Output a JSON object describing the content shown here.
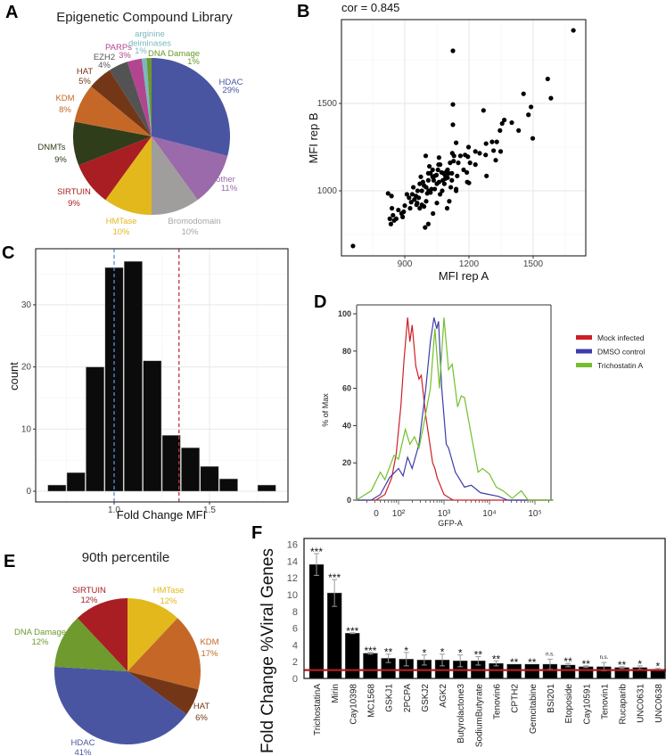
{
  "panels": {
    "a": "A",
    "b": "B",
    "c": "C",
    "d": "D",
    "e": "E",
    "f": "F"
  },
  "chart_data": [
    {
      "id": "A",
      "type": "pie",
      "title": "Epigenetic Compound Library",
      "slices": [
        {
          "label": "HDAC",
          "pct_label": "29%",
          "value": 29,
          "color": "#4a55a2"
        },
        {
          "label": "other",
          "pct_label": "11%",
          "value": 11,
          "color": "#9a6aaa"
        },
        {
          "label": "Bromodomain",
          "pct_label": "10%",
          "value": 10,
          "color": "#a09e9c"
        },
        {
          "label": "HMTase",
          "pct_label": "10%",
          "value": 10,
          "color": "#e2b81c"
        },
        {
          "label": "SIRTUIN",
          "pct_label": "9%",
          "value": 9,
          "color": "#a91e22"
        },
        {
          "label": "DNMTs",
          "pct_label": "9%",
          "value": 9,
          "color": "#2f3d1a"
        },
        {
          "label": "KDM",
          "pct_label": "8%",
          "value": 8,
          "color": "#c56827"
        },
        {
          "label": "HAT",
          "pct_label": "5%",
          "value": 5,
          "color": "#733718"
        },
        {
          "label": "EZH2",
          "pct_label": "4%",
          "value": 4,
          "color": "#535353"
        },
        {
          "label": "PARPs",
          "pct_label": "3%",
          "value": 3,
          "color": "#b14590"
        },
        {
          "label": "arginine deiminases",
          "pct_label": "1%",
          "value": 1,
          "color": "#7ab8c0"
        },
        {
          "label": "DNA Damage",
          "pct_label": "1%",
          "value": 1,
          "color": "#6b9a2a"
        }
      ]
    },
    {
      "id": "B",
      "type": "scatter",
      "title": "cor = 0.845",
      "xlabel": "MFI rep A",
      "ylabel": "MFI rep B",
      "xticks": [
        900,
        1200,
        1500
      ],
      "yticks": [
        1000,
        1500
      ],
      "xlim": [
        620,
        1760
      ],
      "ylim": [
        650,
        1960
      ],
      "grid": true,
      "points": [
        [
          658,
          684
        ],
        [
          1688,
          1918
        ],
        [
          1125,
          1801
        ],
        [
          1125,
          1494
        ],
        [
          1125,
          1378
        ],
        [
          1568,
          1640
        ],
        [
          1583,
          1530
        ],
        [
          1455,
          1555
        ],
        [
          1490,
          1480
        ],
        [
          1478,
          1435
        ],
        [
          1498,
          1300
        ],
        [
          1432,
          1345
        ],
        [
          1400,
          1390
        ],
        [
          1365,
          1405
        ],
        [
          1355,
          1385
        ],
        [
          1345,
          1345
        ],
        [
          1348,
          1225
        ],
        [
          1330,
          1280
        ],
        [
          1308,
          1280
        ],
        [
          1315,
          1230
        ],
        [
          1325,
          1175
        ],
        [
          1268,
          1460
        ],
        [
          1280,
          1270
        ],
        [
          1278,
          1205
        ],
        [
          1282,
          1085
        ],
        [
          1250,
          1215
        ],
        [
          1230,
          1225
        ],
        [
          1230,
          1150
        ],
        [
          1205,
          1160
        ],
        [
          1198,
          1250
        ],
        [
          1195,
          1195
        ],
        [
          1182,
          1205
        ],
        [
          1175,
          1120
        ],
        [
          1190,
          1105
        ],
        [
          1192,
          1050
        ],
        [
          1200,
          1045
        ],
        [
          1150,
          1160
        ],
        [
          1140,
          1275
        ],
        [
          1130,
          1200
        ],
        [
          1128,
          1170
        ],
        [
          1122,
          1215
        ],
        [
          1145,
          1085
        ],
        [
          1140,
          1010
        ],
        [
          1140,
          1000
        ],
        [
          1120,
          1060
        ],
        [
          1115,
          1020
        ],
        [
          1112,
          1160
        ],
        [
          1105,
          1100
        ],
        [
          1100,
          1075
        ],
        [
          1095,
          1110
        ],
        [
          1088,
          1090
        ],
        [
          1082,
          1100
        ],
        [
          1078,
          1060
        ],
        [
          1072,
          1105
        ],
        [
          1065,
          1150
        ],
        [
          1060,
          1190
        ],
        [
          1058,
          1150
        ],
        [
          1055,
          1120
        ],
        [
          1050,
          1040
        ],
        [
          1048,
          1090
        ],
        [
          1040,
          1085
        ],
        [
          1035,
          1060
        ],
        [
          1030,
          1080
        ],
        [
          1025,
          1010
        ],
        [
          1020,
          1100
        ],
        [
          1015,
          1140
        ],
        [
          1012,
          1000
        ],
        [
          1010,
          1060
        ],
        [
          1005,
          985
        ],
        [
          1000,
          1020
        ],
        [
          998,
          1200
        ],
        [
          990,
          1030
        ],
        [
          985,
          1050
        ],
        [
          980,
          1000
        ],
        [
          975,
          1080
        ],
        [
          970,
          1040
        ],
        [
          965,
          960
        ],
        [
          960,
          1000
        ],
        [
          958,
          930
        ],
        [
          952,
          970
        ],
        [
          945,
          950
        ],
        [
          940,
          1020
        ],
        [
          935,
          980
        ],
        [
          930,
          935
        ],
        [
          925,
          900
        ],
        [
          920,
          960
        ],
        [
          910,
          980
        ],
        [
          900,
          915
        ],
        [
          895,
          880
        ],
        [
          890,
          850
        ],
        [
          885,
          870
        ],
        [
          870,
          890
        ],
        [
          860,
          840
        ],
        [
          850,
          830
        ],
        [
          845,
          860
        ],
        [
          840,
          900
        ],
        [
          838,
          970
        ],
        [
          835,
          810
        ],
        [
          830,
          840
        ],
        [
          822,
          985
        ],
        [
          995,
          790
        ],
        [
          1010,
          810
        ],
        [
          1032,
          870
        ],
        [
          1050,
          930
        ],
        [
          1065,
          980
        ],
        [
          1098,
          900
        ],
        [
          1108,
          940
        ],
        [
          1075,
          1000
        ],
        [
          1040,
          1010
        ],
        [
          1020,
          990
        ],
        [
          1000,
          940
        ],
        [
          990,
          910
        ],
        [
          980,
          920
        ],
        [
          970,
          900
        ],
        [
          955,
          920
        ],
        [
          1085,
          1040
        ],
        [
          1120,
          1100
        ],
        [
          1160,
          1200
        ],
        [
          1100,
          1120
        ],
        [
          1090,
          1070
        ],
        [
          1010,
          1100
        ],
        [
          1030,
          1120
        ],
        [
          1060,
          1050
        ]
      ]
    },
    {
      "id": "C",
      "type": "bar",
      "subtype": "histogram",
      "xlabel": "Fold Change MFI",
      "ylabel": "count",
      "bin_width": 0.1,
      "bin_centers": [
        0.7,
        0.8,
        0.9,
        1.0,
        1.1,
        1.2,
        1.3,
        1.4,
        1.5,
        1.6,
        1.8
      ],
      "counts": [
        1,
        3,
        20,
        36,
        37,
        21,
        9,
        7,
        4,
        2,
        1
      ],
      "xticks": [
        1.0,
        1.5
      ],
      "yticks": [
        0,
        10,
        20,
        30
      ],
      "xlim": [
        0.59,
        1.92
      ],
      "ylim": [
        -1.7,
        39
      ],
      "vlines": [
        {
          "x": 1.0,
          "color": "#5b8fd6",
          "style": "dashed"
        },
        {
          "x": 1.34,
          "color": "#c0333a",
          "style": "dashed"
        }
      ],
      "grid": true
    },
    {
      "id": "D",
      "type": "line",
      "xlabel": "GFP-A",
      "ylabel": "% of Max",
      "x_scale": "log10 (biexponential)",
      "xticks": [
        {
          "v": 1.51,
          "label": "0"
        },
        {
          "v": 2,
          "label": "10²"
        },
        {
          "v": 3,
          "label": "10³"
        },
        {
          "v": 4,
          "label": "10⁴"
        },
        {
          "v": 5,
          "label": "10⁵"
        }
      ],
      "yticks": [
        0,
        20,
        40,
        60,
        80,
        100
      ],
      "xlim": [
        1.07,
        5.4
      ],
      "ylim": [
        0,
        102
      ],
      "legend_position": "right",
      "series": [
        {
          "name": "Mock infected",
          "color": "#cc1f26",
          "points": [
            [
              1.07,
              0
            ],
            [
              1.5,
              0
            ],
            [
              1.7,
              3
            ],
            [
              1.85,
              12
            ],
            [
              1.95,
              25
            ],
            [
              2.05,
              50
            ],
            [
              2.12,
              75
            ],
            [
              2.2,
              98
            ],
            [
              2.25,
              85
            ],
            [
              2.3,
              94
            ],
            [
              2.38,
              72
            ],
            [
              2.45,
              65
            ],
            [
              2.5,
              67
            ],
            [
              2.6,
              45
            ],
            [
              2.75,
              20
            ],
            [
              2.8,
              17
            ],
            [
              2.85,
              12
            ],
            [
              3.0,
              3
            ],
            [
              3.2,
              0
            ],
            [
              5.4,
              0
            ]
          ]
        },
        {
          "name": "DMSO control",
          "color": "#3d3da8",
          "points": [
            [
              1.07,
              0
            ],
            [
              1.4,
              0
            ],
            [
              1.6,
              3
            ],
            [
              1.8,
              12
            ],
            [
              2.0,
              17
            ],
            [
              2.1,
              13
            ],
            [
              2.2,
              23
            ],
            [
              2.3,
              17
            ],
            [
              2.45,
              30
            ],
            [
              2.6,
              60
            ],
            [
              2.7,
              85
            ],
            [
              2.78,
              98
            ],
            [
              2.84,
              92
            ],
            [
              2.88,
              96
            ],
            [
              2.95,
              60
            ],
            [
              3.05,
              30
            ],
            [
              3.1,
              28
            ],
            [
              3.25,
              15
            ],
            [
              3.45,
              7
            ],
            [
              3.6,
              8
            ],
            [
              3.8,
              4
            ],
            [
              4.0,
              3
            ],
            [
              4.2,
              2
            ],
            [
              4.4,
              0
            ],
            [
              5.4,
              0
            ]
          ]
        },
        {
          "name": "Trichostatin A",
          "color": "#72c02c",
          "points": [
            [
              1.07,
              0
            ],
            [
              1.4,
              5
            ],
            [
              1.6,
              15
            ],
            [
              1.7,
              11
            ],
            [
              1.9,
              24
            ],
            [
              2.0,
              22
            ],
            [
              2.15,
              38
            ],
            [
              2.25,
              30
            ],
            [
              2.35,
              34
            ],
            [
              2.45,
              28
            ],
            [
              2.55,
              40
            ],
            [
              2.7,
              60
            ],
            [
              2.8,
              92
            ],
            [
              2.9,
              60
            ],
            [
              3.0,
              98
            ],
            [
              3.1,
              70
            ],
            [
              3.18,
              73
            ],
            [
              3.3,
              50
            ],
            [
              3.38,
              56
            ],
            [
              3.45,
              55
            ],
            [
              3.6,
              35
            ],
            [
              3.75,
              15
            ],
            [
              3.85,
              17
            ],
            [
              4.0,
              14
            ],
            [
              4.15,
              7
            ],
            [
              4.3,
              5
            ],
            [
              4.5,
              1
            ],
            [
              4.7,
              5
            ],
            [
              4.85,
              0
            ],
            [
              5.4,
              0
            ]
          ]
        }
      ]
    },
    {
      "id": "E",
      "type": "pie",
      "title": "90th percentile",
      "slices": [
        {
          "label": "HMTase",
          "pct_label": "12%",
          "value": 12,
          "color": "#e2b81c"
        },
        {
          "label": "KDM",
          "pct_label": "17%",
          "value": 17,
          "color": "#c56827"
        },
        {
          "label": "HAT",
          "pct_label": "6%",
          "value": 6,
          "color": "#733718"
        },
        {
          "label": "HDAC",
          "pct_label": "41%",
          "value": 41,
          "color": "#4a55a2"
        },
        {
          "label": "DNA Damage",
          "pct_label": "12%",
          "value": 12,
          "color": "#6f9a2e"
        },
        {
          "label": "SIRTUIN",
          "pct_label": "12%",
          "value": 12,
          "color": "#a91e22"
        }
      ]
    },
    {
      "id": "F",
      "type": "bar",
      "ylabel": "Fold Change %Viral Genes",
      "yticks": [
        0,
        2,
        4,
        6,
        8,
        10,
        12,
        14,
        16
      ],
      "ylim": [
        0,
        16.5
      ],
      "reference_line": {
        "y": 1,
        "color": "#b01c22"
      },
      "categories": [
        "TrichostatinA",
        "Mirin",
        "Cay10398",
        "MC1568",
        "GSKJ1",
        "2PCPA",
        "GSKJ2",
        "AGK2",
        "Butyrolactone3",
        "SodiumButyrate",
        "Tenovin6",
        "CPTH2",
        "Gemcitabine",
        "BSI201",
        "Etoposide",
        "Cay10591",
        "Tenovin1",
        "Rucaparib",
        "UNC0631",
        "UNC0638"
      ],
      "values": [
        13.6,
        10.2,
        5.4,
        3.0,
        2.4,
        2.3,
        2.2,
        2.2,
        2.1,
        2.1,
        1.8,
        1.7,
        1.7,
        1.7,
        1.6,
        1.4,
        1.4,
        1.3,
        1.3,
        1.1
      ],
      "errors": [
        1.3,
        1.6,
        0.05,
        0.1,
        0.5,
        0.8,
        0.6,
        0.7,
        0.7,
        0.5,
        0.3,
        0,
        0,
        0.6,
        0.2,
        0.1,
        0.5,
        0.1,
        0.2,
        0.1
      ],
      "significance": [
        "***",
        "***",
        "***",
        "***",
        "**",
        "*",
        "*",
        "*",
        "*",
        "**",
        "**",
        "**",
        "**",
        "n.s.",
        "**",
        "**",
        "n.s.",
        "**",
        "*",
        "*"
      ]
    }
  ]
}
